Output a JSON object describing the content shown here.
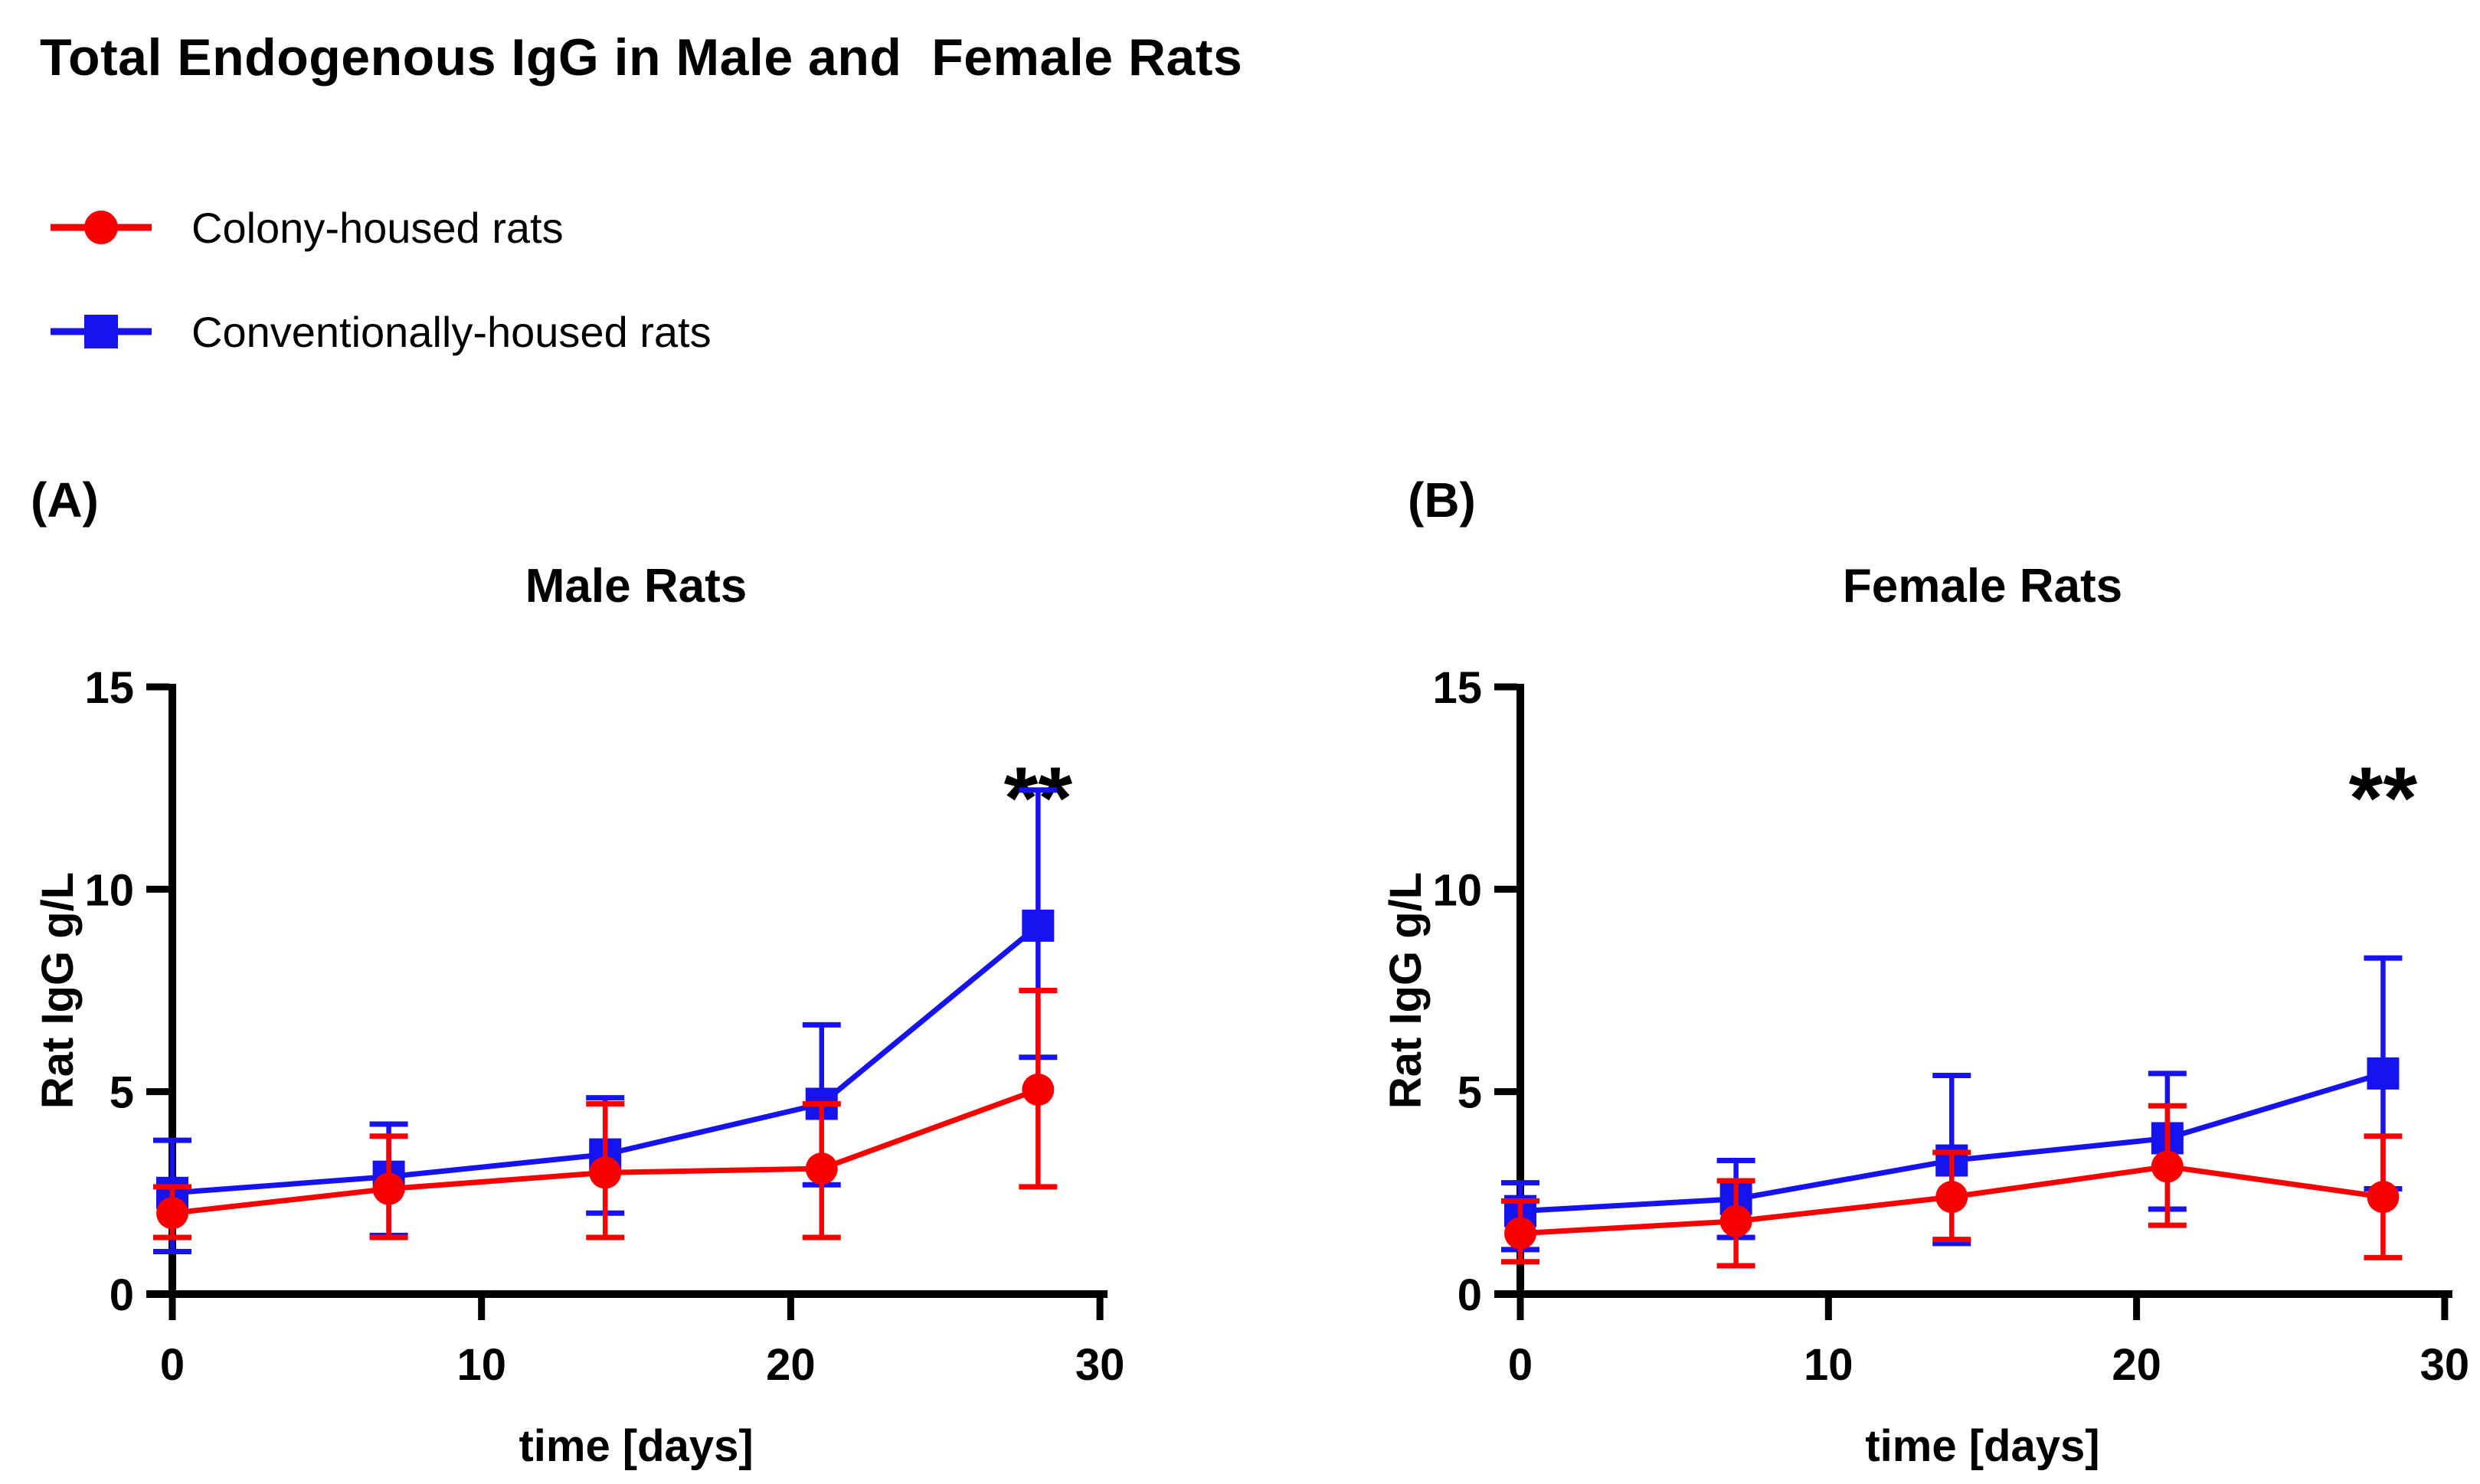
{
  "page": {
    "title": "Total Endogenous IgG in Male and  Female Rats",
    "background": "#ffffff"
  },
  "colors": {
    "colony_red": "#f80000",
    "conventional_blue": "#1612f0",
    "axis_black": "#000000"
  },
  "legend": {
    "items": [
      {
        "label": "Colony-housed rats",
        "marker": "circle",
        "color": "#f80000"
      },
      {
        "label": "Conventionally-housed rats",
        "marker": "square",
        "color": "#1612f0"
      }
    ]
  },
  "chart_data": [
    {
      "type": "line",
      "panel_letter": "(A)",
      "title": "Male Rats",
      "xlabel": "time [days]",
      "ylabel": "Rat IgG g/L",
      "xlim": [
        0,
        30
      ],
      "ylim": [
        0,
        15
      ],
      "xticks": [
        0,
        10,
        20,
        30
      ],
      "yticks": [
        0,
        5,
        10,
        15
      ],
      "x": [
        0,
        7,
        14,
        21,
        28
      ],
      "series": [
        {
          "name": "Colony-housed rats",
          "marker": "circle",
          "color": "#f80000",
          "values": [
            2.0,
            2.6,
            3.0,
            3.1,
            5.05
          ],
          "err_low": [
            1.4,
            1.4,
            1.4,
            1.4,
            2.65
          ],
          "err_high": [
            2.65,
            3.9,
            4.7,
            4.7,
            7.5
          ]
        },
        {
          "name": "Conventionally-housed rats",
          "marker": "square",
          "color": "#1612f0",
          "values": [
            2.5,
            2.9,
            3.45,
            4.7,
            9.1
          ],
          "err_low": [
            1.05,
            1.45,
            2.0,
            2.7,
            5.85
          ],
          "err_high": [
            3.8,
            4.2,
            4.85,
            6.65,
            12.45
          ]
        }
      ],
      "annotation": {
        "text": "**",
        "at_x": 28
      }
    },
    {
      "type": "line",
      "panel_letter": "(B)",
      "title": "Female Rats",
      "xlabel": "time [days]",
      "ylabel": "Rat IgG g/L",
      "xlim": [
        0,
        30
      ],
      "ylim": [
        0,
        15
      ],
      "xticks": [
        0,
        10,
        20,
        30
      ],
      "yticks": [
        0,
        5,
        10,
        15
      ],
      "x": [
        0,
        7,
        14,
        21,
        28
      ],
      "series": [
        {
          "name": "Colony-housed rats",
          "marker": "circle",
          "color": "#f80000",
          "values": [
            1.5,
            1.8,
            2.4,
            3.15,
            2.4
          ],
          "err_low": [
            0.8,
            0.7,
            1.35,
            1.7,
            0.9
          ],
          "err_high": [
            2.3,
            2.8,
            3.5,
            4.65,
            3.9
          ]
        },
        {
          "name": "Conventionally-housed rats",
          "marker": "square",
          "color": "#1612f0",
          "values": [
            2.05,
            2.35,
            3.3,
            3.85,
            5.45
          ],
          "err_low": [
            1.1,
            1.4,
            1.25,
            2.1,
            2.6
          ],
          "err_high": [
            2.75,
            3.3,
            5.4,
            5.45,
            8.3
          ]
        }
      ],
      "annotation": {
        "text": "**",
        "at_x": 28
      }
    }
  ]
}
